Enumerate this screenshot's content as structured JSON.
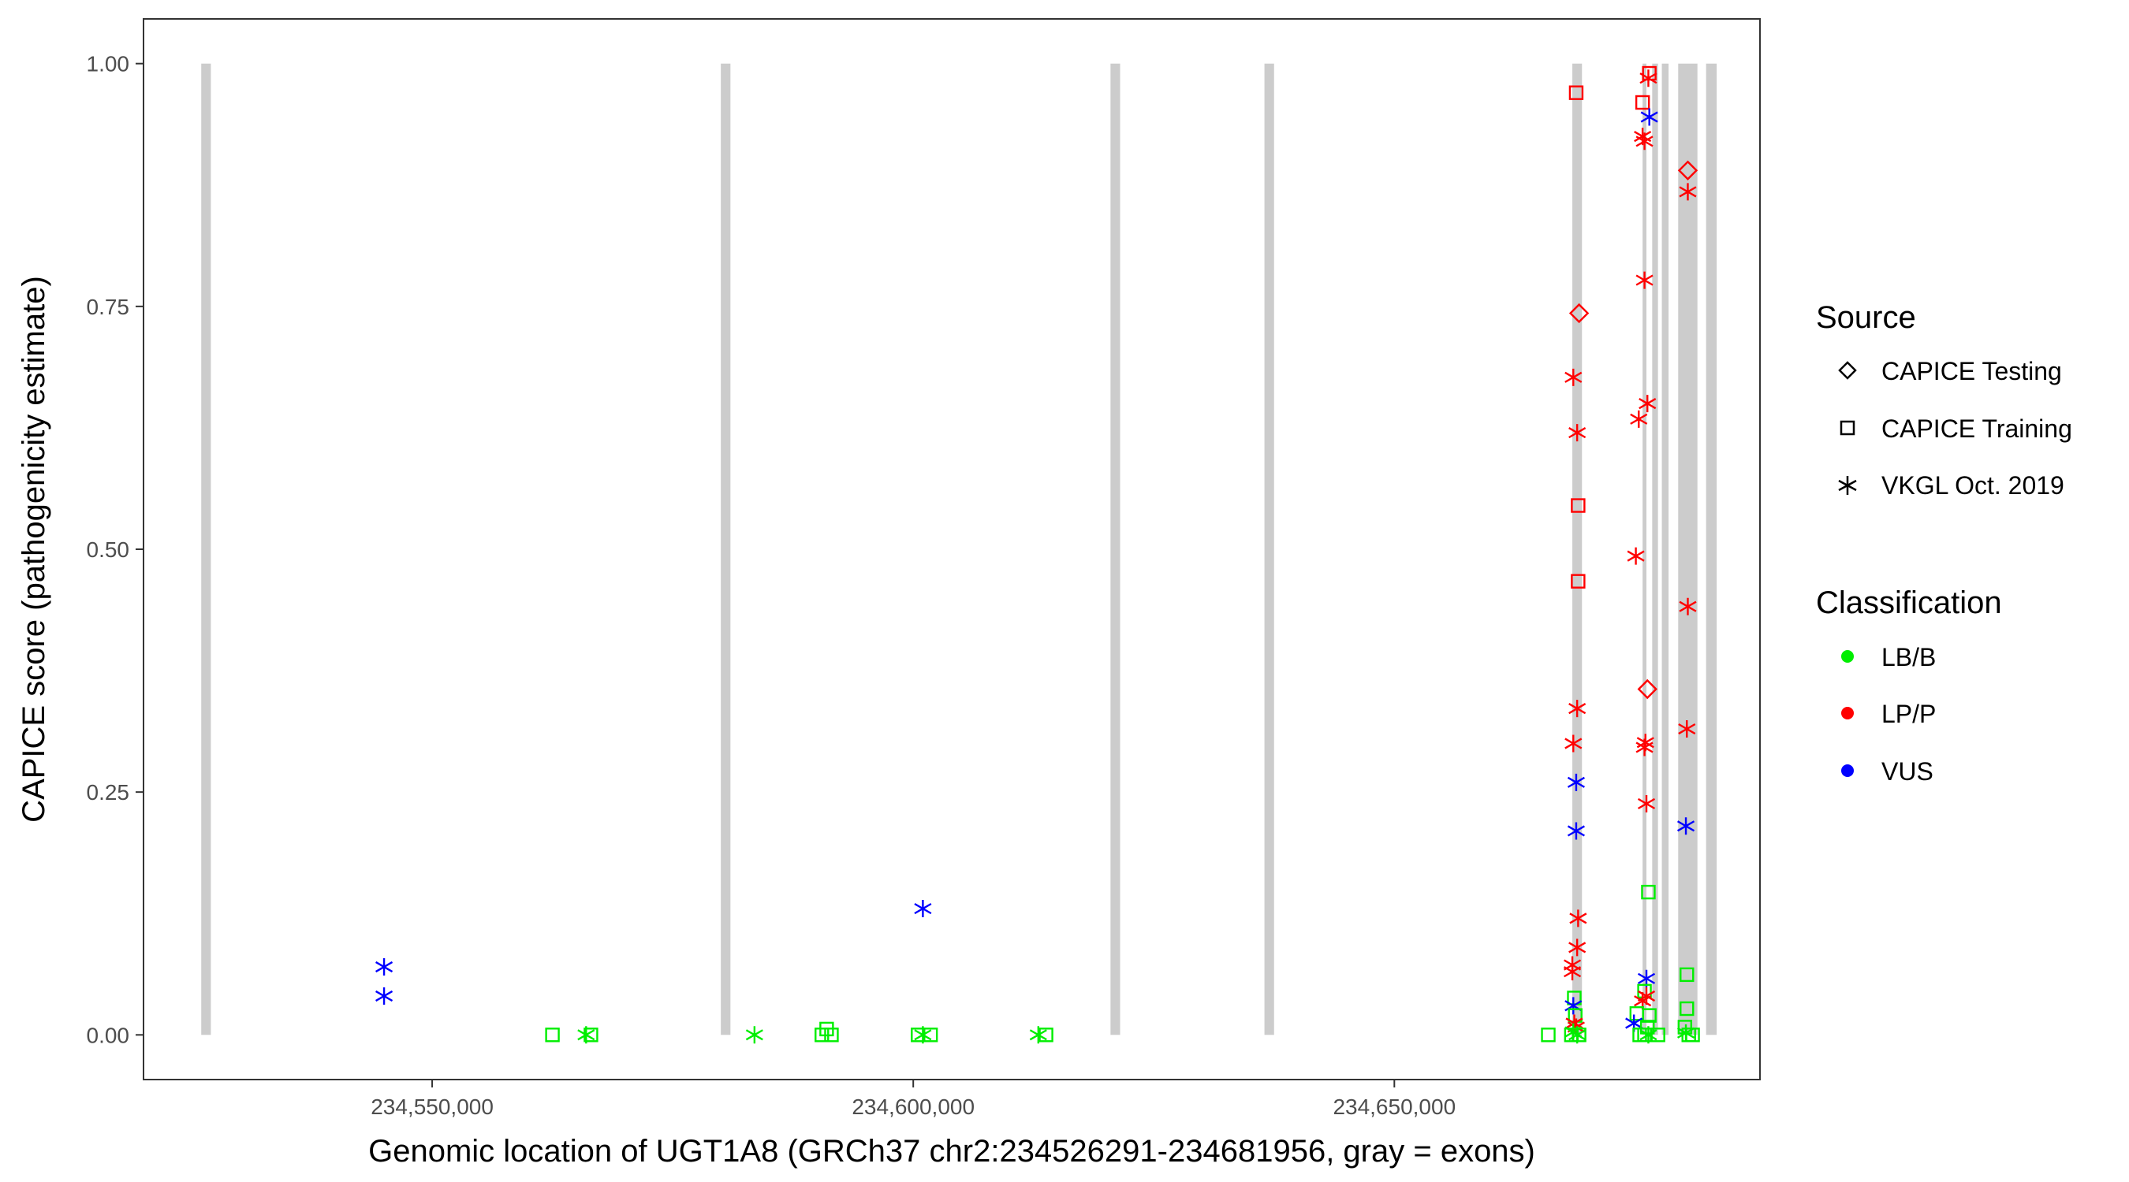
{
  "chart_data": {
    "type": "scatter",
    "xlabel": "Genomic location of UGT1A8 (GRCh37 chr2:234526291-234681956, gray = exons)",
    "ylabel": "CAPICE score (pathogenicity estimate)",
    "xlim": [
      234520000,
      234688000
    ],
    "ylim": [
      -0.046,
      1.046
    ],
    "x_ticks": [
      234550000,
      234600000,
      234650000
    ],
    "x_tick_labels": [
      "234,550,000",
      "234,600,000",
      "234,650,000"
    ],
    "y_ticks": [
      0,
      0.25,
      0.5,
      0.75,
      1.0
    ],
    "y_tick_labels": [
      "0.00",
      "0.25",
      "0.50",
      "0.75",
      "1.00"
    ],
    "grid": false,
    "exons": [
      [
        234526000,
        234527000
      ],
      [
        234580000,
        234581000
      ],
      [
        234620500,
        234621500
      ],
      [
        234636500,
        234637500
      ],
      [
        234668500,
        234669500
      ],
      [
        234675800,
        234676200
      ],
      [
        234676800,
        234677400
      ],
      [
        234677800,
        234678500
      ],
      [
        234679500,
        234681500
      ],
      [
        234682400,
        234683500
      ]
    ],
    "legend": {
      "position": "right",
      "source_title": "Source",
      "source_entries": [
        {
          "label": "CAPICE Testing",
          "shape": "diamond"
        },
        {
          "label": "CAPICE Training",
          "shape": "square"
        },
        {
          "label": "VKGL Oct. 2019",
          "shape": "asterisk"
        }
      ],
      "classification_title": "Classification",
      "classification_entries": [
        {
          "label": "LB/B",
          "color": "#00ee00"
        },
        {
          "label": "LP/P",
          "color": "#ff0000"
        },
        {
          "label": "VUS",
          "color": "#0000ff"
        }
      ]
    },
    "points": [
      {
        "x": 234545000,
        "y": 0.07,
        "shape": "asterisk",
        "cls": "VUS"
      },
      {
        "x": 234545000,
        "y": 0.04,
        "shape": "asterisk",
        "cls": "VUS"
      },
      {
        "x": 234601000,
        "y": 0.13,
        "shape": "asterisk",
        "cls": "VUS"
      },
      {
        "x": 234562500,
        "y": 0.0,
        "shape": "square",
        "cls": "LB/B"
      },
      {
        "x": 234566000,
        "y": 0.0,
        "shape": "asterisk",
        "cls": "LB/B"
      },
      {
        "x": 234566500,
        "y": 0.0,
        "shape": "square",
        "cls": "LB/B"
      },
      {
        "x": 234583500,
        "y": 0.0,
        "shape": "asterisk",
        "cls": "LB/B"
      },
      {
        "x": 234590500,
        "y": 0.0,
        "shape": "square",
        "cls": "LB/B"
      },
      {
        "x": 234591000,
        "y": 0.006,
        "shape": "square",
        "cls": "LB/B"
      },
      {
        "x": 234591500,
        "y": 0.0,
        "shape": "square",
        "cls": "LB/B"
      },
      {
        "x": 234600500,
        "y": 0.0,
        "shape": "square",
        "cls": "LB/B"
      },
      {
        "x": 234601000,
        "y": 0.0,
        "shape": "asterisk",
        "cls": "LB/B"
      },
      {
        "x": 234601800,
        "y": 0.0,
        "shape": "square",
        "cls": "LB/B"
      },
      {
        "x": 234613000,
        "y": 0.0,
        "shape": "asterisk",
        "cls": "LB/B"
      },
      {
        "x": 234613800,
        "y": 0.0,
        "shape": "square",
        "cls": "LB/B"
      },
      {
        "x": 234668900,
        "y": 0.97,
        "shape": "square",
        "cls": "LP/P"
      },
      {
        "x": 234669200,
        "y": 0.743,
        "shape": "diamond",
        "cls": "LP/P"
      },
      {
        "x": 234668600,
        "y": 0.677,
        "shape": "asterisk",
        "cls": "LP/P"
      },
      {
        "x": 234669000,
        "y": 0.62,
        "shape": "asterisk",
        "cls": "LP/P"
      },
      {
        "x": 234669100,
        "y": 0.545,
        "shape": "square",
        "cls": "LP/P"
      },
      {
        "x": 234669100,
        "y": 0.467,
        "shape": "square",
        "cls": "LP/P"
      },
      {
        "x": 234669000,
        "y": 0.336,
        "shape": "asterisk",
        "cls": "LP/P"
      },
      {
        "x": 234668600,
        "y": 0.3,
        "shape": "asterisk",
        "cls": "LP/P"
      },
      {
        "x": 234668900,
        "y": 0.26,
        "shape": "asterisk",
        "cls": "VUS"
      },
      {
        "x": 234668900,
        "y": 0.21,
        "shape": "asterisk",
        "cls": "VUS"
      },
      {
        "x": 234669100,
        "y": 0.12,
        "shape": "asterisk",
        "cls": "LP/P"
      },
      {
        "x": 234669000,
        "y": 0.09,
        "shape": "asterisk",
        "cls": "LP/P"
      },
      {
        "x": 234668500,
        "y": 0.072,
        "shape": "asterisk",
        "cls": "LP/P"
      },
      {
        "x": 234668500,
        "y": 0.065,
        "shape": "asterisk",
        "cls": "LP/P"
      },
      {
        "x": 234668700,
        "y": 0.038,
        "shape": "square",
        "cls": "LB/B"
      },
      {
        "x": 234668600,
        "y": 0.03,
        "shape": "asterisk",
        "cls": "VUS"
      },
      {
        "x": 234668800,
        "y": 0.02,
        "shape": "square",
        "cls": "LB/B"
      },
      {
        "x": 234668700,
        "y": 0.012,
        "shape": "asterisk",
        "cls": "LP/P"
      },
      {
        "x": 234668900,
        "y": 0.008,
        "shape": "asterisk",
        "cls": "LP/P"
      },
      {
        "x": 234668600,
        "y": 0.003,
        "shape": "asterisk",
        "cls": "LB/B"
      },
      {
        "x": 234669000,
        "y": 0.0,
        "shape": "asterisk",
        "cls": "LB/B"
      },
      {
        "x": 234668400,
        "y": 0.0,
        "shape": "square",
        "cls": "LB/B"
      },
      {
        "x": 234669200,
        "y": 0.0,
        "shape": "square",
        "cls": "LB/B"
      },
      {
        "x": 234666000,
        "y": 0.0,
        "shape": "square",
        "cls": "LB/B"
      },
      {
        "x": 234676400,
        "y": 0.985,
        "shape": "asterisk",
        "cls": "LP/P"
      },
      {
        "x": 234676500,
        "y": 0.99,
        "shape": "square",
        "cls": "LP/P"
      },
      {
        "x": 234675800,
        "y": 0.96,
        "shape": "square",
        "cls": "LP/P"
      },
      {
        "x": 234676500,
        "y": 0.945,
        "shape": "asterisk",
        "cls": "VUS"
      },
      {
        "x": 234675800,
        "y": 0.925,
        "shape": "asterisk",
        "cls": "LP/P"
      },
      {
        "x": 234676000,
        "y": 0.92,
        "shape": "asterisk",
        "cls": "LP/P"
      },
      {
        "x": 234676000,
        "y": 0.777,
        "shape": "asterisk",
        "cls": "LP/P"
      },
      {
        "x": 234676300,
        "y": 0.65,
        "shape": "asterisk",
        "cls": "LP/P"
      },
      {
        "x": 234675400,
        "y": 0.634,
        "shape": "asterisk",
        "cls": "LP/P"
      },
      {
        "x": 234675100,
        "y": 0.493,
        "shape": "asterisk",
        "cls": "LP/P"
      },
      {
        "x": 234676300,
        "y": 0.356,
        "shape": "diamond",
        "cls": "LP/P"
      },
      {
        "x": 234676100,
        "y": 0.301,
        "shape": "asterisk",
        "cls": "LP/P"
      },
      {
        "x": 234676000,
        "y": 0.296,
        "shape": "asterisk",
        "cls": "LP/P"
      },
      {
        "x": 234676200,
        "y": 0.238,
        "shape": "asterisk",
        "cls": "LP/P"
      },
      {
        "x": 234676400,
        "y": 0.147,
        "shape": "square",
        "cls": "LB/B"
      },
      {
        "x": 234676200,
        "y": 0.058,
        "shape": "asterisk",
        "cls": "VUS"
      },
      {
        "x": 234676000,
        "y": 0.045,
        "shape": "square",
        "cls": "LB/B"
      },
      {
        "x": 234676200,
        "y": 0.04,
        "shape": "asterisk",
        "cls": "LP/P"
      },
      {
        "x": 234675800,
        "y": 0.035,
        "shape": "asterisk",
        "cls": "LP/P"
      },
      {
        "x": 234675200,
        "y": 0.022,
        "shape": "square",
        "cls": "LB/B"
      },
      {
        "x": 234676500,
        "y": 0.02,
        "shape": "square",
        "cls": "LB/B"
      },
      {
        "x": 234674900,
        "y": 0.012,
        "shape": "asterisk",
        "cls": "VUS"
      },
      {
        "x": 234676300,
        "y": 0.008,
        "shape": "square",
        "cls": "LB/B"
      },
      {
        "x": 234675500,
        "y": 0.0,
        "shape": "square",
        "cls": "LB/B"
      },
      {
        "x": 234676000,
        "y": 0.0,
        "shape": "square",
        "cls": "LB/B"
      },
      {
        "x": 234676400,
        "y": 0.0,
        "shape": "asterisk",
        "cls": "LB/B"
      },
      {
        "x": 234677400,
        "y": 0.0,
        "shape": "square",
        "cls": "LB/B"
      },
      {
        "x": 234680500,
        "y": 0.89,
        "shape": "diamond",
        "cls": "LP/P"
      },
      {
        "x": 234680500,
        "y": 0.868,
        "shape": "asterisk",
        "cls": "LP/P"
      },
      {
        "x": 234680500,
        "y": 0.441,
        "shape": "asterisk",
        "cls": "LP/P"
      },
      {
        "x": 234680400,
        "y": 0.315,
        "shape": "asterisk",
        "cls": "LP/P"
      },
      {
        "x": 234680300,
        "y": 0.215,
        "shape": "asterisk",
        "cls": "VUS"
      },
      {
        "x": 234680400,
        "y": 0.062,
        "shape": "square",
        "cls": "LB/B"
      },
      {
        "x": 234680400,
        "y": 0.027,
        "shape": "square",
        "cls": "LB/B"
      },
      {
        "x": 234680200,
        "y": 0.008,
        "shape": "square",
        "cls": "LB/B"
      },
      {
        "x": 234680300,
        "y": 0.002,
        "shape": "asterisk",
        "cls": "LB/B"
      },
      {
        "x": 234680600,
        "y": 0.0,
        "shape": "square",
        "cls": "LB/B"
      },
      {
        "x": 234681000,
        "y": 0.0,
        "shape": "square",
        "cls": "LB/B"
      }
    ]
  }
}
